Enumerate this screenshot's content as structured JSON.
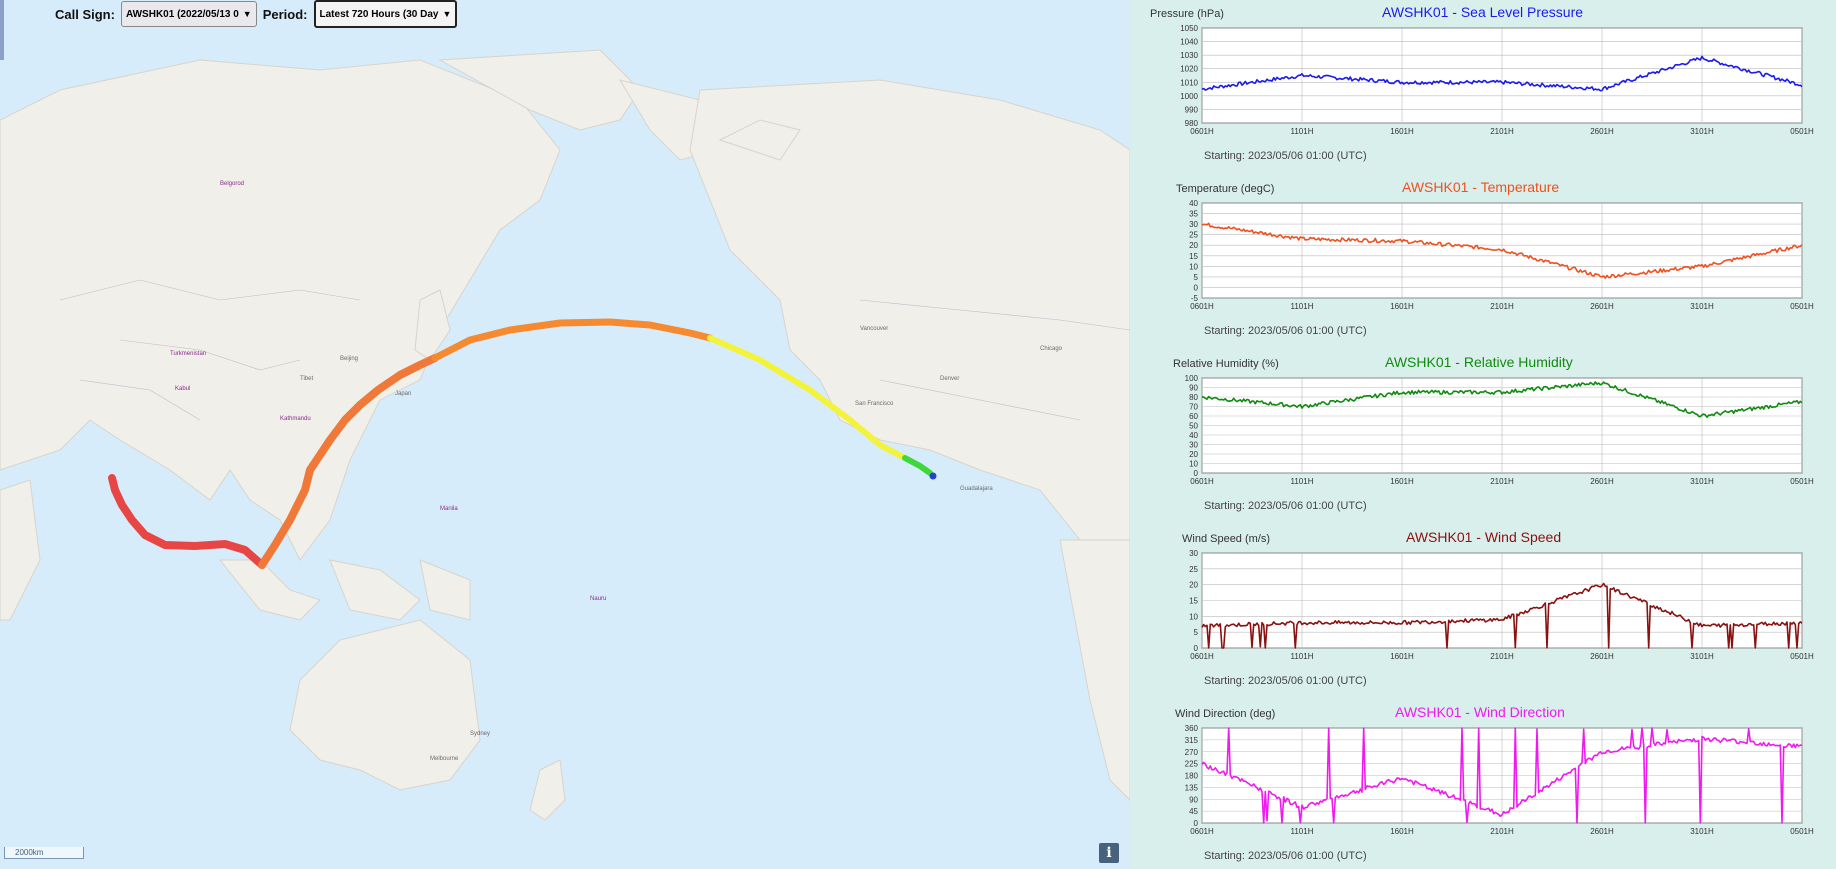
{
  "controls": {
    "call_sign_label": "Call Sign:",
    "call_sign_value": "AWSHK01 (2022/05/13 0",
    "period_label": "Period:",
    "period_value": "Latest 720 Hours (30 Day"
  },
  "map": {
    "scale_label": "2000km",
    "info_label": "i",
    "track_colors": [
      "#e84545",
      "#f07838",
      "#f58a30",
      "#f5d32e",
      "#f3f33a",
      "#3ed83a",
      "#2244cc"
    ]
  },
  "charts": [
    {
      "id": "pressure",
      "title": "AWSHK01 - Sea Level Pressure",
      "ylabel": "Pressure (hPa)",
      "color": "#1a1aee",
      "starting": "Starting: 2023/05/06 01:00 (UTC)",
      "yticks": [
        "1050",
        "1040",
        "1030",
        "1020",
        "1010",
        "1000",
        "990",
        "980"
      ],
      "xticks": [
        "0601H",
        "1101H",
        "1601H",
        "2101H",
        "2601H",
        "3101H",
        "0501H"
      ]
    },
    {
      "id": "temperature",
      "title": "AWSHK01 - Temperature",
      "ylabel": "Temperature (degC)",
      "color": "#f0501e",
      "starting": "Starting: 2023/05/06 01:00 (UTC)",
      "yticks": [
        "40",
        "35",
        "30",
        "25",
        "20",
        "15",
        "10",
        "5",
        "0",
        "-5"
      ],
      "xticks": [
        "0601H",
        "1101H",
        "1601H",
        "2101H",
        "2601H",
        "3101H",
        "0501H"
      ]
    },
    {
      "id": "humidity",
      "title": "AWSHK01 - Relative Humidity",
      "ylabel": "Relative Humidity (%)",
      "color": "#118a11",
      "starting": "Starting: 2023/05/06 01:00 (UTC)",
      "yticks": [
        "100",
        "90",
        "80",
        "70",
        "60",
        "50",
        "40",
        "30",
        "20",
        "10",
        "0"
      ],
      "xticks": [
        "0601H",
        "1101H",
        "1601H",
        "2101H",
        "2601H",
        "3101H",
        "0501H"
      ]
    },
    {
      "id": "wind-speed",
      "title": "AWSHK01 - Wind Speed",
      "ylabel": "Wind Speed (m/s)",
      "color": "#8b1010",
      "starting": "Starting: 2023/05/06 01:00 (UTC)",
      "yticks": [
        "30",
        "25",
        "20",
        "15",
        "10",
        "5",
        "0"
      ],
      "xticks": [
        "0601H",
        "1101H",
        "1601H",
        "2101H",
        "2601H",
        "3101H",
        "0501H"
      ]
    },
    {
      "id": "wind-direction",
      "title": "AWSHK01 - Wind Direction",
      "ylabel": "Wind Direction (deg)",
      "color": "#ee1aee",
      "starting": "Starting: 2023/05/06 01:00 (UTC)",
      "yticks": [
        "360",
        "315",
        "270",
        "225",
        "180",
        "135",
        "90",
        "45",
        "0"
      ],
      "xticks": [
        "0601H",
        "1101H",
        "1601H",
        "2101H",
        "2601H",
        "3101H",
        "0501H"
      ]
    }
  ],
  "chart_data": [
    {
      "type": "line",
      "title": "AWSHK01 - Sea Level Pressure",
      "ylabel": "Pressure (hPa)",
      "ylim": [
        980,
        1050
      ],
      "x": [
        "0601H",
        "1101H",
        "1601H",
        "2101H",
        "2601H",
        "3101H",
        "0501H"
      ],
      "series": [
        {
          "values": [
            1005,
            1015,
            1010,
            1010,
            1005,
            1028,
            1008
          ]
        }
      ]
    },
    {
      "type": "line",
      "title": "AWSHK01 - Temperature",
      "ylabel": "Temperature (degC)",
      "ylim": [
        -5,
        40
      ],
      "x": [
        "0601H",
        "1101H",
        "1601H",
        "2101H",
        "2601H",
        "3101H",
        "0501H"
      ],
      "series": [
        {
          "values": [
            30,
            23,
            22,
            18,
            5,
            10,
            20
          ]
        }
      ]
    },
    {
      "type": "line",
      "title": "AWSHK01 - Relative Humidity",
      "ylabel": "Relative Humidity (%)",
      "ylim": [
        0,
        100
      ],
      "x": [
        "0601H",
        "1101H",
        "1601H",
        "2101H",
        "2601H",
        "3101H",
        "0501H"
      ],
      "series": [
        {
          "values": [
            80,
            70,
            85,
            85,
            95,
            60,
            75
          ]
        }
      ]
    },
    {
      "type": "line",
      "title": "AWSHK01 - Wind Speed",
      "ylabel": "Wind Speed (m/s)",
      "ylim": [
        0,
        30
      ],
      "x": [
        "0601H",
        "1101H",
        "1601H",
        "2101H",
        "2601H",
        "3101H",
        "0501H"
      ],
      "series": [
        {
          "values": [
            7,
            8,
            8,
            9,
            20,
            7,
            8
          ]
        }
      ]
    },
    {
      "type": "line",
      "title": "AWSHK01 - Wind Direction",
      "ylabel": "Wind Direction (deg)",
      "ylim": [
        0,
        360
      ],
      "x": [
        "0601H",
        "1101H",
        "1601H",
        "2101H",
        "2601H",
        "3101H",
        "0501H"
      ],
      "series": [
        {
          "values": [
            225,
            60,
            170,
            30,
            270,
            320,
            290
          ]
        }
      ]
    }
  ]
}
